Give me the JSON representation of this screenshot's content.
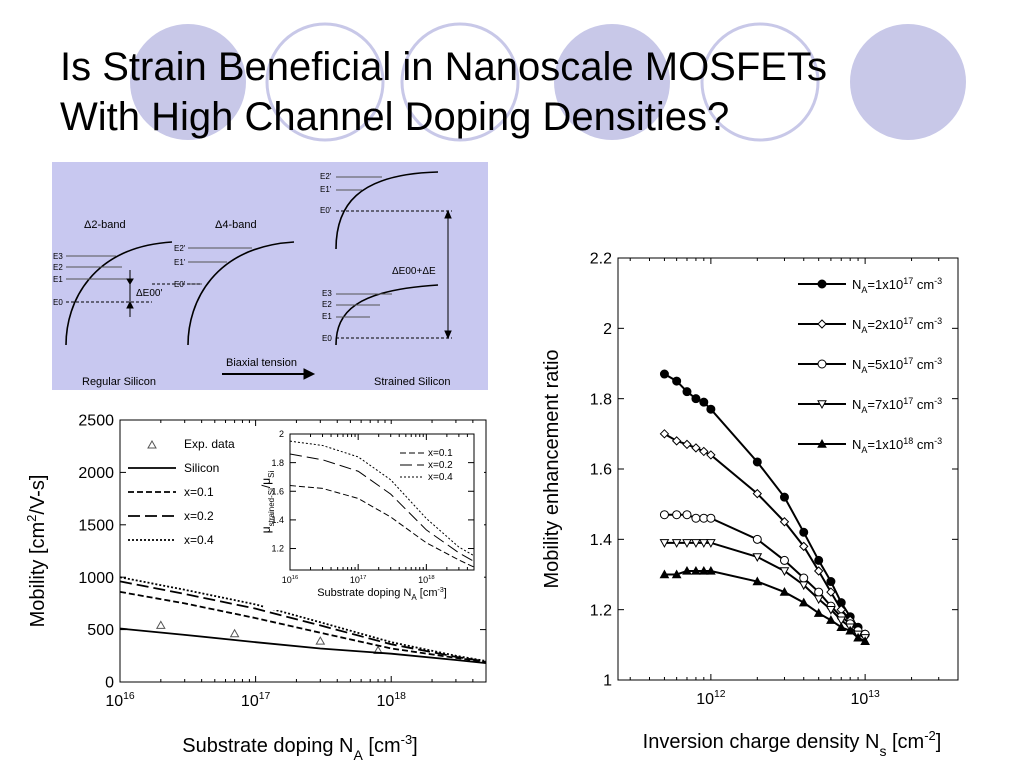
{
  "slide": {
    "title_line1": "Is Strain Beneficial in Nanoscale MOSFETs",
    "title_line2": "With High Channel Doping Densities?",
    "colors": {
      "deco_circle": "#c8c8e8",
      "band_panel_bg": "#c8c8f0"
    }
  },
  "band_diagram": {
    "delta2_label": "Δ2-band",
    "delta4_label": "Δ4-band",
    "left_levels": [
      "E3",
      "E2",
      "E1",
      "E0"
    ],
    "mid_levels": [
      "E2'",
      "E1'",
      "E0'"
    ],
    "right_top_levels": [
      "E2'",
      "E1'",
      "E0'"
    ],
    "right_bottom_levels": [
      "E3",
      "E2",
      "E1",
      "E0"
    ],
    "delta_e00": "ΔE00'",
    "delta_e_sum": "ΔE00+ΔE",
    "arrow_label": "Biaxial tension",
    "regular_label": "Regular Silicon",
    "strained_label": "Strained Silicon"
  },
  "chart_data": [
    {
      "type": "line",
      "log_x": true,
      "xlabel": "Substrate doping N_A [cm^-3]",
      "ylabel": "Mobility [cm^2/V-s]",
      "xlim": [
        1e+16,
        5e+18
      ],
      "ylim": [
        0,
        2500
      ],
      "x_ticks": [
        "10^16",
        "10^17",
        "10^18"
      ],
      "y_ticks": [
        0,
        500,
        1000,
        1500,
        2000,
        2500
      ],
      "legend": [
        "Exp. data",
        "Silicon",
        "x=0.1",
        "x=0.2",
        "x=0.4"
      ],
      "series": [
        {
          "name": "Exp. data",
          "style": "triangle",
          "x": [
            2e+16,
            7e+16,
            3e+17,
            8e+17
          ],
          "y": [
            540,
            460,
            390,
            300
          ]
        },
        {
          "name": "Silicon",
          "style": "solid",
          "x": [
            1e+16,
            3e+16,
            1e+17,
            3e+17,
            1e+18,
            3e+18,
            5e+18
          ],
          "y": [
            510,
            450,
            380,
            320,
            270,
            210,
            180
          ]
        },
        {
          "name": "x=0.1",
          "style": "dashed",
          "x": [
            1e+16,
            3e+16,
            1e+17,
            3e+17,
            1e+18,
            3e+18,
            5e+18
          ],
          "y": [
            860,
            750,
            610,
            470,
            320,
            230,
            190
          ]
        },
        {
          "name": "x=0.2",
          "style": "longdash",
          "x": [
            1e+16,
            3e+16,
            1e+17,
            3e+17,
            1e+18,
            3e+18,
            5e+18
          ],
          "y": [
            960,
            840,
            700,
            540,
            360,
            240,
            195
          ]
        },
        {
          "name": "x=0.4",
          "style": "dotted",
          "x": [
            1e+16,
            3e+16,
            1e+17,
            3e+17,
            1e+18,
            3e+18,
            5e+18
          ],
          "y": [
            1000,
            880,
            740,
            570,
            380,
            250,
            200
          ]
        }
      ],
      "inset": {
        "ylabel": "μstrained-Si/μSi",
        "xlabel": "Substrate doping N_A [cm^-3]",
        "xlim": [
          1e+16,
          5e+18
        ],
        "ylim": [
          1.05,
          2.0
        ],
        "x_ticks": [
          "10^16",
          "10^17",
          "10^18"
        ],
        "y_ticks": [
          "1.2",
          "1.4",
          "1.6",
          "1.8",
          "2"
        ],
        "legend": [
          "x=0.1",
          "x=0.2",
          "x=0.4"
        ],
        "series": [
          {
            "name": "x=0.1",
            "style": "dashed",
            "x": [
              1e+16,
              3e+16,
              1e+17,
              3e+17,
              1e+18,
              3e+18,
              5e+18
            ],
            "y": [
              1.64,
              1.62,
              1.55,
              1.42,
              1.24,
              1.12,
              1.07
            ]
          },
          {
            "name": "x=0.2",
            "style": "longdash",
            "x": [
              1e+16,
              3e+16,
              1e+17,
              3e+17,
              1e+18,
              3e+18,
              5e+18
            ],
            "y": [
              1.86,
              1.82,
              1.74,
              1.58,
              1.33,
              1.17,
              1.11
            ]
          },
          {
            "name": "x=0.4",
            "style": "dotted",
            "x": [
              1e+16,
              3e+16,
              1e+17,
              3e+17,
              1e+18,
              3e+18,
              5e+18
            ],
            "y": [
              1.95,
              1.92,
              1.84,
              1.68,
              1.41,
              1.21,
              1.15
            ]
          }
        ]
      }
    },
    {
      "type": "line",
      "log_x": true,
      "xlabel": "Inversion charge density N_s [cm^-2]",
      "ylabel": "Mobility enhancement ratio",
      "xlim": [
        250000000000.0,
        40000000000000.0
      ],
      "ylim": [
        1.0,
        2.2
      ],
      "x_ticks": [
        "10^12",
        "10^13"
      ],
      "y_ticks": [
        "1",
        "1.2",
        "1.4",
        "1.6",
        "1.8",
        "2",
        "2.2"
      ],
      "series": [
        {
          "name": "N_A=1x10^17 cm^-3",
          "marker": "filled-circle",
          "x": [
            500000000000.0,
            600000000000.0,
            700000000000.0,
            800000000000.0,
            900000000000.0,
            1000000000000.0,
            2000000000000.0,
            3000000000000.0,
            4000000000000.0,
            5000000000000.0,
            6000000000000.0,
            7000000000000.0,
            8000000000000.0,
            9000000000000.0,
            10000000000000.0
          ],
          "y": [
            1.87,
            1.85,
            1.82,
            1.8,
            1.79,
            1.77,
            1.62,
            1.52,
            1.42,
            1.34,
            1.28,
            1.22,
            1.18,
            1.15,
            1.13
          ]
        },
        {
          "name": "N_A=2x10^17 cm^-3",
          "marker": "open-diamond",
          "x": [
            500000000000.0,
            600000000000.0,
            700000000000.0,
            800000000000.0,
            900000000000.0,
            1000000000000.0,
            2000000000000.0,
            3000000000000.0,
            4000000000000.0,
            5000000000000.0,
            6000000000000.0,
            7000000000000.0,
            8000000000000.0,
            9000000000000.0,
            10000000000000.0
          ],
          "y": [
            1.7,
            1.68,
            1.67,
            1.66,
            1.65,
            1.64,
            1.53,
            1.45,
            1.38,
            1.31,
            1.25,
            1.2,
            1.17,
            1.14,
            1.13
          ]
        },
        {
          "name": "N_A=5x10^17 cm^-3",
          "marker": "open-circle",
          "x": [
            500000000000.0,
            600000000000.0,
            700000000000.0,
            800000000000.0,
            900000000000.0,
            1000000000000.0,
            2000000000000.0,
            3000000000000.0,
            4000000000000.0,
            5000000000000.0,
            6000000000000.0,
            7000000000000.0,
            8000000000000.0,
            9000000000000.0,
            10000000000000.0
          ],
          "y": [
            1.47,
            1.47,
            1.47,
            1.46,
            1.46,
            1.46,
            1.4,
            1.34,
            1.29,
            1.25,
            1.21,
            1.18,
            1.16,
            1.14,
            1.13
          ]
        },
        {
          "name": "N_A=7x10^17 cm^-3",
          "marker": "open-triangle-down",
          "x": [
            500000000000.0,
            600000000000.0,
            700000000000.0,
            800000000000.0,
            900000000000.0,
            1000000000000.0,
            2000000000000.0,
            3000000000000.0,
            4000000000000.0,
            5000000000000.0,
            6000000000000.0,
            7000000000000.0,
            8000000000000.0,
            9000000000000.0,
            10000000000000.0
          ],
          "y": [
            1.39,
            1.39,
            1.39,
            1.39,
            1.39,
            1.39,
            1.35,
            1.31,
            1.27,
            1.23,
            1.2,
            1.17,
            1.15,
            1.13,
            1.12
          ]
        },
        {
          "name": "N_A=1x10^18 cm^-3",
          "marker": "filled-triangle-up",
          "x": [
            500000000000.0,
            600000000000.0,
            700000000000.0,
            800000000000.0,
            900000000000.0,
            1000000000000.0,
            2000000000000.0,
            3000000000000.0,
            4000000000000.0,
            5000000000000.0,
            6000000000000.0,
            7000000000000.0,
            8000000000000.0,
            9000000000000.0,
            10000000000000.0
          ],
          "y": [
            1.3,
            1.3,
            1.31,
            1.31,
            1.31,
            1.31,
            1.28,
            1.25,
            1.22,
            1.19,
            1.17,
            1.15,
            1.14,
            1.12,
            1.11
          ]
        }
      ]
    }
  ]
}
